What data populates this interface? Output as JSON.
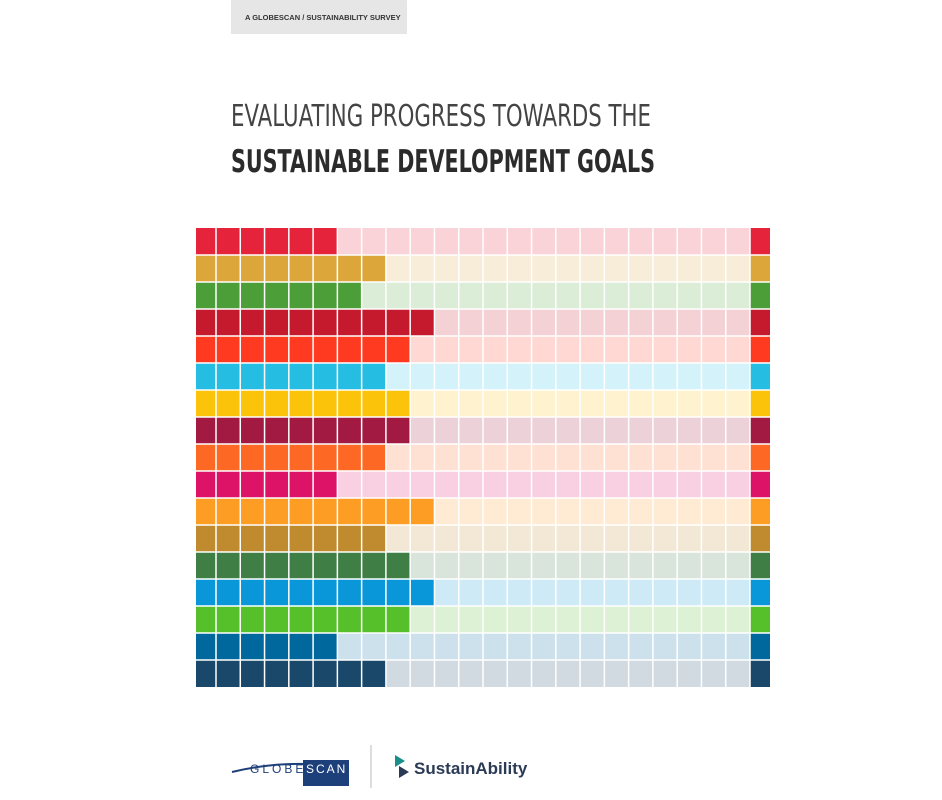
{
  "header": {
    "label": "A GLOBESCAN / SUSTAINABILITY SURVEY"
  },
  "title": {
    "line1": "EVALUATING PROGRESS TOWARDS THE",
    "line2": "SUSTAINABLE DEVELOPMENT GOALS"
  },
  "grid": {
    "columns": 24,
    "rows": [
      {
        "color": "#e5243b",
        "filled": 6
      },
      {
        "color": "#dda63a",
        "filled": 8
      },
      {
        "color": "#4c9f38",
        "filled": 7
      },
      {
        "color": "#c5192d",
        "filled": 10
      },
      {
        "color": "#ff3a21",
        "filled": 9
      },
      {
        "color": "#26bde2",
        "filled": 8
      },
      {
        "color": "#fcc30b",
        "filled": 9
      },
      {
        "color": "#a21942",
        "filled": 9
      },
      {
        "color": "#fd6925",
        "filled": 8
      },
      {
        "color": "#dd1367",
        "filled": 6
      },
      {
        "color": "#fd9d24",
        "filled": 10
      },
      {
        "color": "#bf8b2e",
        "filled": 8
      },
      {
        "color": "#3f7e44",
        "filled": 9
      },
      {
        "color": "#0a97d9",
        "filled": 10
      },
      {
        "color": "#56c02b",
        "filled": 9
      },
      {
        "color": "#00689d",
        "filled": 6
      },
      {
        "color": "#19486a",
        "filled": 8
      }
    ]
  },
  "logos": {
    "globescan": {
      "left": "GLOBE",
      "right": "SCAN"
    },
    "sustainability": "SustainAbility"
  }
}
